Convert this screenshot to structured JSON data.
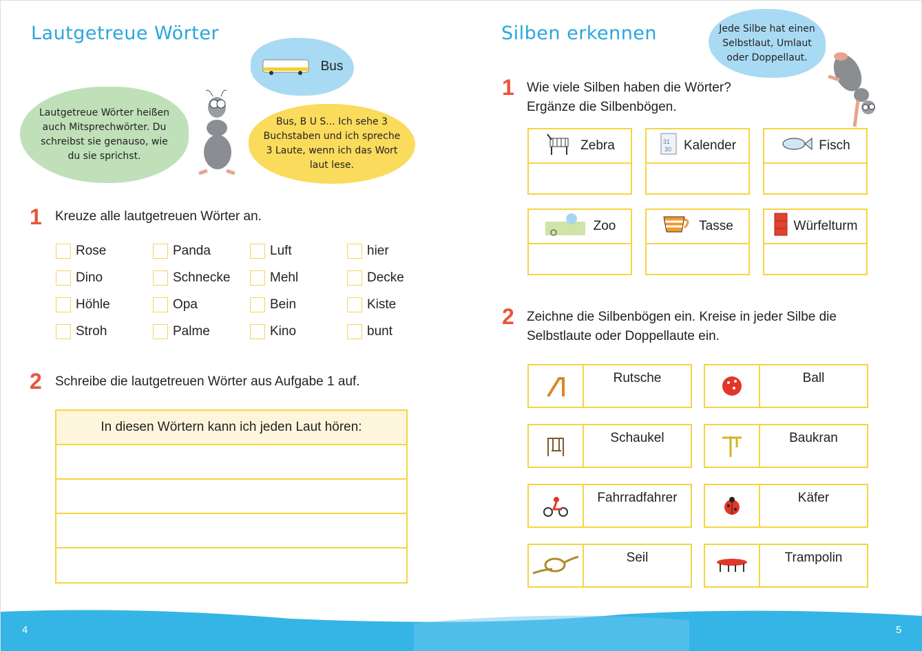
{
  "left": {
    "title": "Lautgetreue Wörter",
    "bubble_bus": "Bus",
    "bubble_green": "Lautgetreue Wörter heißen auch Mitsprechwörter. Du schreibst sie genauso, wie du sie sprichst.",
    "bubble_yellow": "Bus, B U S... Ich sehe 3 Buchstaben und ich spreche 3 Laute, wenn ich das Wort laut lese.",
    "task1": {
      "number": "1",
      "text": "Kreuze alle lautgetreuen Wörter an.",
      "words": [
        [
          "Rose",
          "Panda",
          "Luft",
          "hier"
        ],
        [
          "Dino",
          "Schnecke",
          "Mehl",
          "Decke"
        ],
        [
          "Höhle",
          "Opa",
          "Bein",
          "Kiste"
        ],
        [
          "Stroh",
          "Palme",
          "Kino",
          "bunt"
        ]
      ]
    },
    "task2": {
      "number": "2",
      "text": "Schreibe die lautgetreuen Wörter aus Aufgabe 1 auf.",
      "table_header": "In diesen Wörtern kann ich jeden Laut hören:"
    },
    "page_number": "4"
  },
  "right": {
    "title": "Silben erkennen",
    "bubble_blue": "Jede Silbe hat einen Selbstlaut, Umlaut oder Doppellaut.",
    "task1": {
      "number": "1",
      "text_line1": "Wie viele Silben haben die Wörter?",
      "text_line2": "Ergänze die Silbenbögen.",
      "words": [
        {
          "label": "Zebra",
          "icon": "zebra-icon"
        },
        {
          "label": "Kalender",
          "icon": "calendar-icon"
        },
        {
          "label": "Fisch",
          "icon": "fish-icon"
        },
        {
          "label": "Zoo",
          "icon": "zoo-icon"
        },
        {
          "label": "Tasse",
          "icon": "cup-icon"
        },
        {
          "label": "Würfelturm",
          "icon": "dice-tower-icon"
        }
      ]
    },
    "task2": {
      "number": "2",
      "text_line1": "Zeichne die Silbenbögen ein. Kreise in jeder Silbe die",
      "text_line2": "Selbstlaute oder Doppellaute ein.",
      "words": [
        {
          "label": "Rutsche",
          "icon": "slide-icon"
        },
        {
          "label": "Ball",
          "icon": "ball-icon"
        },
        {
          "label": "Schaukel",
          "icon": "swing-icon"
        },
        {
          "label": "Baukran",
          "icon": "crane-icon"
        },
        {
          "label": "Fahrradfahrer",
          "icon": "cyclist-icon"
        },
        {
          "label": "Käfer",
          "icon": "ladybug-icon"
        },
        {
          "label": "Seil",
          "icon": "rope-icon"
        },
        {
          "label": "Trampolin",
          "icon": "trampoline-icon"
        }
      ]
    },
    "page_number": "5"
  },
  "colors": {
    "title": "#2aa6dc",
    "number": "#e8553a",
    "border": "#f5d442",
    "wave": "#35b4e6"
  }
}
